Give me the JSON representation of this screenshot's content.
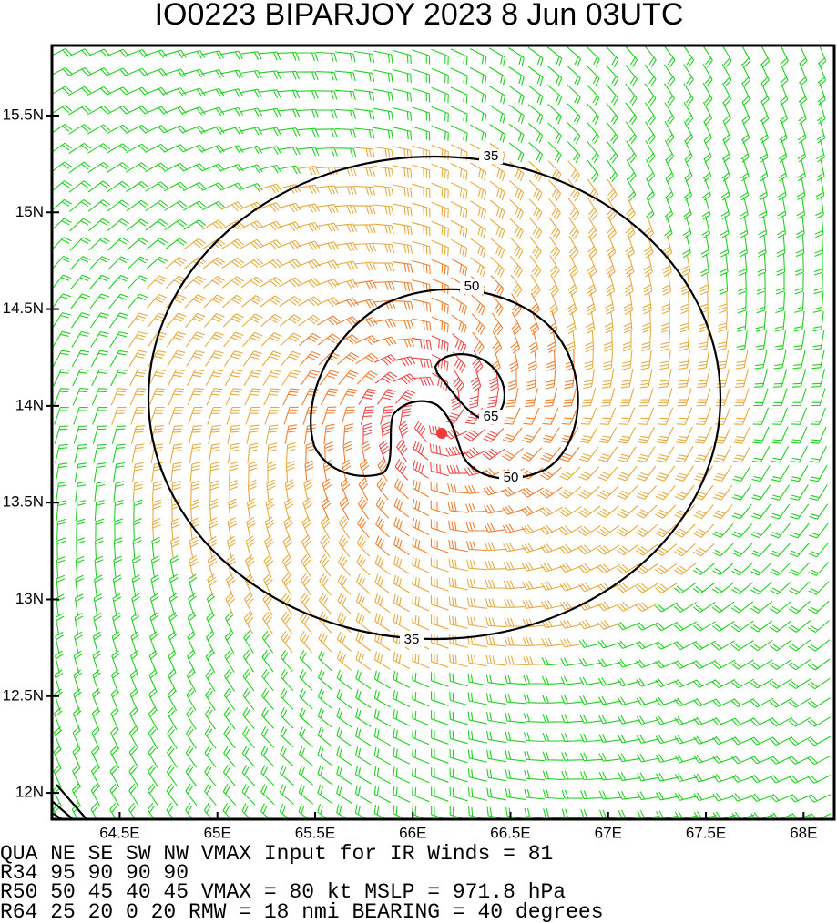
{
  "map": {
    "title": "IO0223    BIPARJOY 2023   8 Jun 03UTC",
    "xlim": [
      64.153,
      68.157
    ],
    "ylim": [
      11.864,
      15.862
    ],
    "xticks": [
      {
        "value": 64.5,
        "label": "64.5E"
      },
      {
        "value": 65,
        "label": "65E"
      },
      {
        "value": 65.5,
        "label": "65.5E"
      },
      {
        "value": 66,
        "label": "66E"
      },
      {
        "value": 66.5,
        "label": "66.5E"
      },
      {
        "value": 67,
        "label": "67E"
      },
      {
        "value": 67.5,
        "label": "67.5E"
      },
      {
        "value": 68,
        "label": "68E"
      }
    ],
    "yticks": [
      {
        "value": 12,
        "label": "12N"
      },
      {
        "value": 12.5,
        "label": "12.5N"
      },
      {
        "value": 13,
        "label": "13N"
      },
      {
        "value": 13.5,
        "label": "13.5N"
      },
      {
        "value": 14,
        "label": "14N"
      },
      {
        "value": 14.5,
        "label": "14.5N"
      },
      {
        "value": 15,
        "label": "15N"
      },
      {
        "value": 15.5,
        "label": "15.5N"
      }
    ],
    "contour_labels": [
      "35",
      "50",
      "65",
      "50",
      "35"
    ]
  },
  "info": {
    "lines": [
      "QUA    NE   SE   SW   NW   VMAX Input for IR Winds =    81",
      "R34    95   90   90   90",
      "R50    50   45   40   45   VMAX =    80 kt MSLP =  971.8 hPa",
      "R64    25   20    0   20   RMW  =   18 nmi BEARING =    40 degrees"
    ]
  }
}
